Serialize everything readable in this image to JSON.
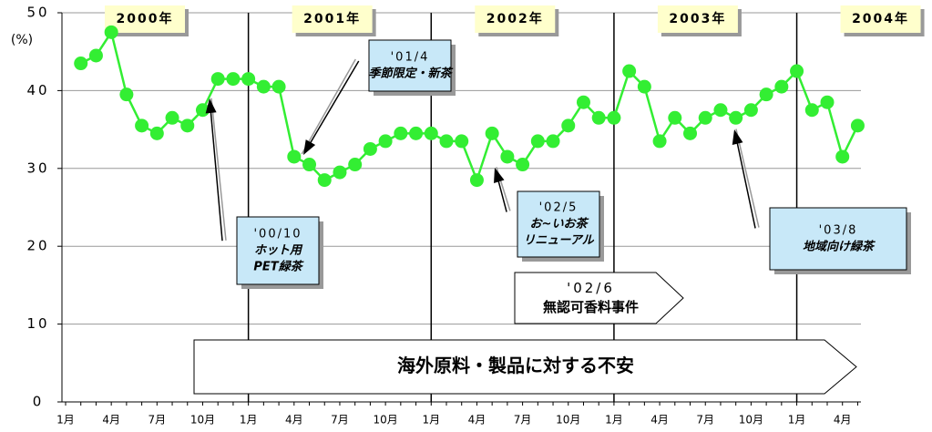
{
  "chart_data": {
    "type": "line",
    "ylabel": "(%)",
    "categories": [
      "1月",
      null,
      null,
      "4月",
      null,
      null,
      "7月",
      null,
      null,
      "10月",
      null,
      null,
      "1月",
      null,
      null,
      "4月",
      null,
      null,
      "7月",
      null,
      null,
      "10月",
      null,
      null,
      "1月",
      null,
      null,
      "4月",
      null,
      null,
      "7月",
      null,
      null,
      "10月",
      null,
      null,
      "1月",
      null,
      null,
      "4月",
      null,
      null,
      "7月",
      null,
      null,
      "10月",
      null,
      null,
      "1月",
      null,
      null,
      "4月",
      null
    ],
    "series": [
      {
        "color": "#33ee33",
        "values": [
          null,
          43.5,
          44.5,
          47.5,
          39.5,
          35.5,
          34.5,
          36.5,
          35.5,
          37.5,
          41.5,
          41.5,
          41.5,
          40.5,
          40.5,
          31.5,
          30.5,
          28.5,
          29.5,
          30.5,
          32.5,
          33.5,
          34.5,
          34.5,
          34.5,
          33.5,
          33.5,
          28.5,
          34.5,
          31.5,
          30.5,
          33.5,
          33.5,
          35.5,
          38.5,
          36.5,
          36.5,
          42.5,
          40.5,
          33.5,
          36.5,
          34.5,
          36.5,
          37.5,
          36.5,
          37.5,
          39.5,
          40.5,
          42.5,
          37.5,
          38.5,
          31.5,
          35.5
        ]
      }
    ],
    "ylim": [
      0,
      50
    ],
    "yticks": [
      0,
      10,
      20,
      30,
      40,
      50
    ],
    "grid": true,
    "year_labels": [
      "2000年",
      "2001年",
      "2002年",
      "2003年",
      "2004年"
    ],
    "annotations": [
      {
        "lines": [
          "'01/4",
          "季節限定・新茶"
        ]
      },
      {
        "lines": [
          "'00/10",
          "ホット用",
          "PET緑茶"
        ]
      },
      {
        "lines": [
          "'02/5",
          "お~いお茶",
          "リニューアル"
        ]
      },
      {
        "lines": [
          "'03/8",
          "地域向け緑茶"
        ]
      }
    ],
    "banners": [
      {
        "lines": [
          "'02/6",
          "無認可香料事件"
        ]
      },
      {
        "lines": [
          "海外原料・製品に対する不安"
        ]
      }
    ]
  }
}
